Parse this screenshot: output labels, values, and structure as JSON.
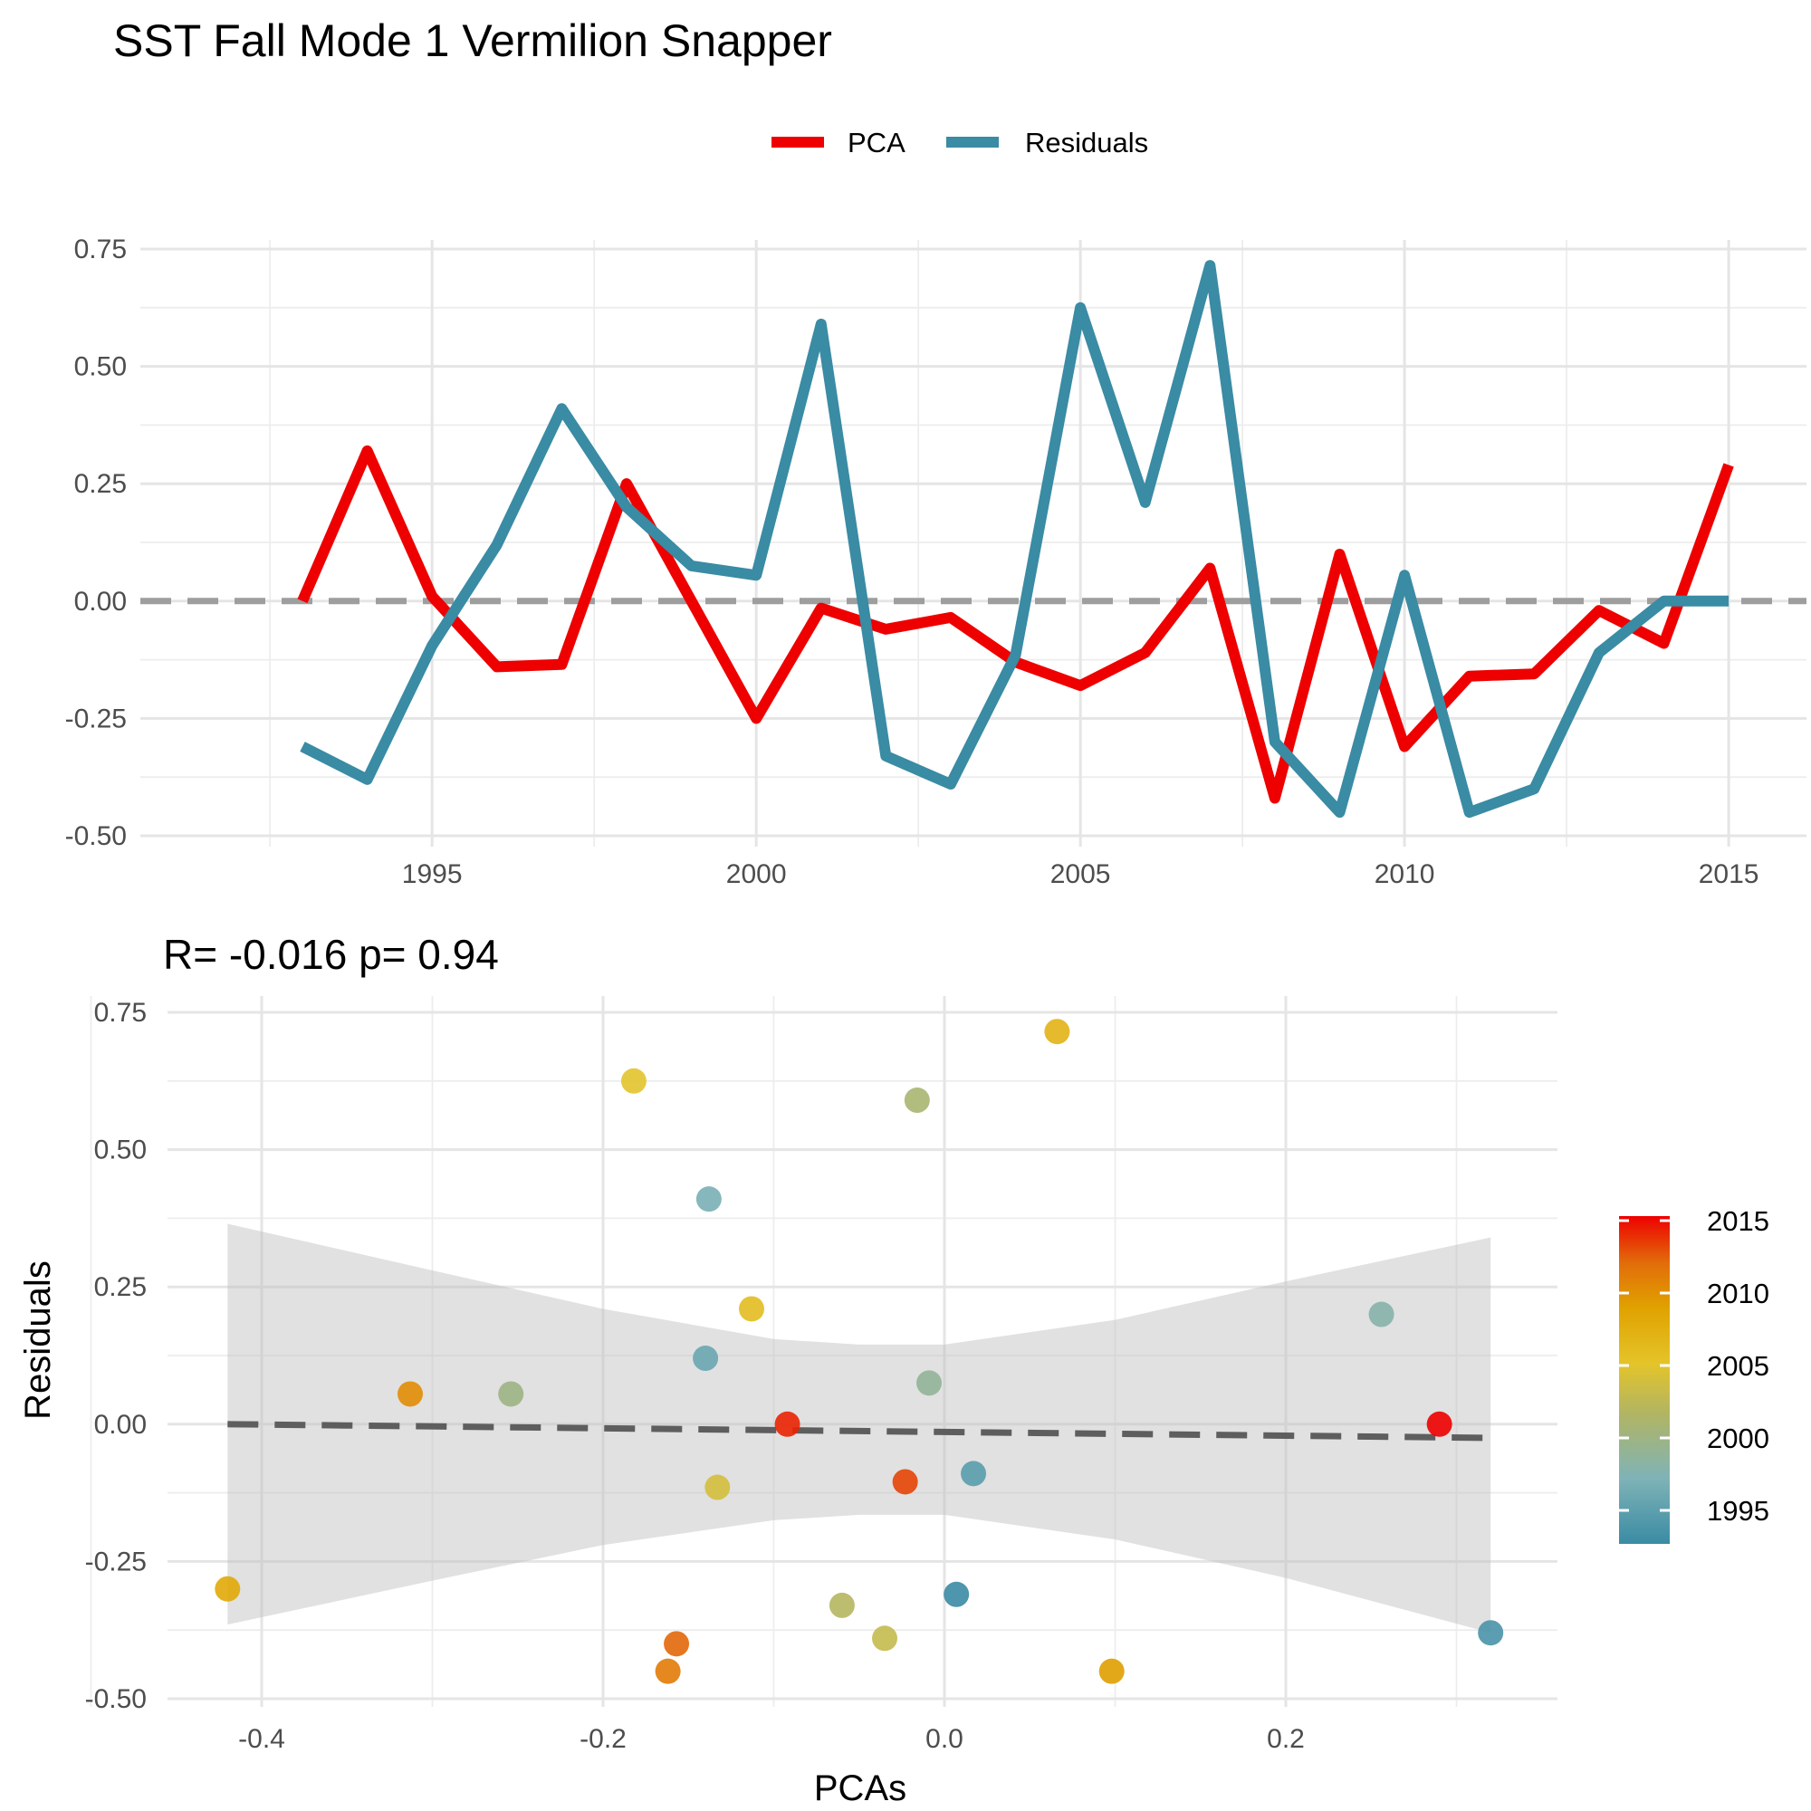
{
  "title": "SST Fall Mode 1 Vermilion Snapper",
  "chart_data": [
    {
      "type": "line",
      "title": "",
      "xlabel": "",
      "ylabel": "",
      "x": [
        1993,
        1994,
        1995,
        1996,
        1997,
        1998,
        1999,
        2000,
        2001,
        2002,
        2003,
        2004,
        2005,
        2006,
        2007,
        2008,
        2009,
        2010,
        2011,
        2012,
        2013,
        2014,
        2015
      ],
      "series": [
        {
          "name": "PCA",
          "color": "#ee0000",
          "values": [
            0.0,
            0.32,
            0.01,
            -0.14,
            -0.135,
            0.25,
            0.0,
            -0.25,
            -0.015,
            -0.06,
            -0.035,
            -0.13,
            -0.18,
            -0.11,
            0.07,
            -0.42,
            0.1,
            -0.31,
            -0.16,
            -0.155,
            -0.02,
            -0.09,
            0.29
          ]
        },
        {
          "name": "Residuals",
          "color": "#3a8ba4",
          "values": [
            -0.31,
            -0.38,
            -0.095,
            0.12,
            0.41,
            0.2,
            0.075,
            0.055,
            0.59,
            -0.33,
            -0.39,
            -0.115,
            0.625,
            0.21,
            0.715,
            -0.3,
            -0.45,
            0.055,
            -0.45,
            -0.4,
            -0.11,
            0.0,
            0.0
          ]
        }
      ],
      "xlim": [
        1990.5,
        2016.2
      ],
      "ylim": [
        -0.5,
        0.75
      ],
      "x_ticks": [
        "1995",
        "2000",
        "2005",
        "2010",
        "2015"
      ],
      "y_ticks": [
        "-0.50",
        "-0.25",
        "0.00",
        "0.25",
        "0.50",
        "0.75"
      ],
      "reference_line": 0.0,
      "legend": {
        "position": "top",
        "items": [
          "PCA",
          "Residuals"
        ]
      },
      "grid": true
    },
    {
      "type": "scatter",
      "title": "R= -0.016  p= 0.94",
      "xlabel": "PCAs",
      "ylabel": "Residuals",
      "xlim": [
        -0.46,
        0.36
      ],
      "ylim": [
        -0.5,
        0.75
      ],
      "x_ticks": [
        "-0.4",
        "-0.2",
        "0.0",
        "0.2"
      ],
      "y_ticks": [
        "-0.50",
        "-0.25",
        "0.00",
        "0.25",
        "0.50",
        "0.75"
      ],
      "points": [
        {
          "x": 0.007,
          "y": -0.31,
          "year": 1993
        },
        {
          "x": 0.32,
          "y": -0.38,
          "year": 1994
        },
        {
          "x": 0.017,
          "y": -0.09,
          "year": 1995
        },
        {
          "x": -0.14,
          "y": 0.12,
          "year": 1996
        },
        {
          "x": -0.138,
          "y": 0.41,
          "year": 1997
        },
        {
          "x": 0.256,
          "y": 0.2,
          "year": 1998
        },
        {
          "x": -0.009,
          "y": 0.075,
          "year": 1999
        },
        {
          "x": -0.254,
          "y": 0.055,
          "year": 2000
        },
        {
          "x": -0.016,
          "y": 0.59,
          "year": 2001
        },
        {
          "x": -0.06,
          "y": -0.33,
          "year": 2002
        },
        {
          "x": -0.035,
          "y": -0.39,
          "year": 2003
        },
        {
          "x": -0.133,
          "y": -0.115,
          "year": 2004
        },
        {
          "x": -0.182,
          "y": 0.625,
          "year": 2005
        },
        {
          "x": -0.113,
          "y": 0.21,
          "year": 2006
        },
        {
          "x": 0.066,
          "y": 0.715,
          "year": 2007
        },
        {
          "x": -0.42,
          "y": -0.3,
          "year": 2008
        },
        {
          "x": 0.098,
          "y": -0.45,
          "year": 2009
        },
        {
          "x": -0.313,
          "y": 0.055,
          "year": 2010
        },
        {
          "x": -0.162,
          "y": -0.45,
          "year": 2011
        },
        {
          "x": -0.157,
          "y": -0.4,
          "year": 2012
        },
        {
          "x": -0.023,
          "y": -0.105,
          "year": 2013
        },
        {
          "x": -0.092,
          "y": 0.0,
          "year": 2014
        },
        {
          "x": 0.29,
          "y": 0.0,
          "year": 2015
        }
      ],
      "fit_line": {
        "x": [
          -0.42,
          0.32
        ],
        "y": [
          0.0,
          -0.025
        ]
      },
      "confidence_band": {
        "x": [
          -0.42,
          -0.3,
          -0.2,
          -0.1,
          -0.05,
          0.0,
          0.1,
          0.2,
          0.32
        ],
        "upper": [
          0.365,
          0.28,
          0.21,
          0.155,
          0.145,
          0.145,
          0.19,
          0.26,
          0.34
        ],
        "lower": [
          -0.365,
          -0.285,
          -0.22,
          -0.175,
          -0.165,
          -0.165,
          -0.21,
          -0.28,
          -0.38
        ]
      },
      "colorbar": {
        "labels": [
          "2015",
          "2010",
          "2005",
          "2000",
          "1995"
        ],
        "range": [
          1993,
          2015
        ],
        "colors": [
          "#3a8ba4",
          "#7fb3b7",
          "#b2b562",
          "#e4c42a",
          "#e0a200",
          "#e26b0a",
          "#ee0000"
        ]
      }
    }
  ]
}
